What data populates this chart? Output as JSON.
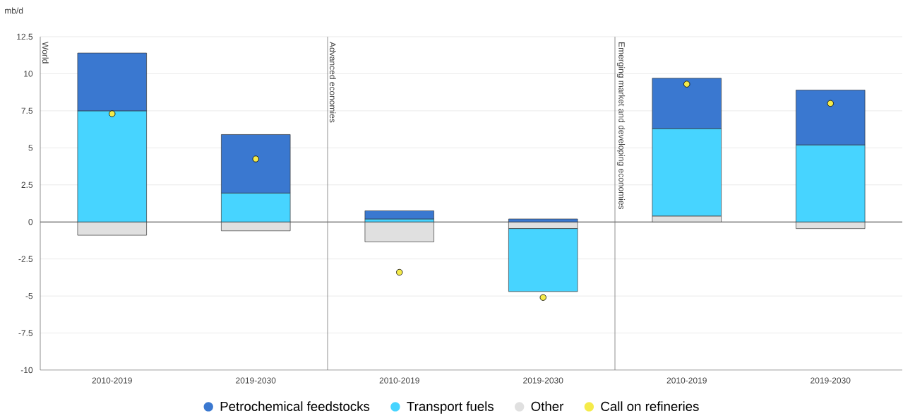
{
  "chart_data": {
    "type": "bar",
    "ylabel": "mb/d",
    "categories": [
      "2010-2019",
      "2019-2030",
      "2010-2019",
      "2019-2030",
      "2010-2019",
      "2019-2030"
    ],
    "stacked": true,
    "series": [
      {
        "name": "Other",
        "color": "#e0e0e0",
        "values": [
          -0.9,
          -0.6,
          -1.35,
          -0.45,
          0.4,
          -0.45
        ]
      },
      {
        "name": "Transport fuels",
        "color": "#47d4ff",
        "values": [
          7.5,
          1.95,
          0.2,
          -4.25,
          5.9,
          5.2
        ]
      },
      {
        "name": "Petrochemical feedstocks",
        "color": "#3a78d0",
        "values": [
          3.9,
          3.95,
          0.55,
          0.2,
          3.4,
          3.7
        ]
      },
      {
        "name": "Call on refineries",
        "type": "scatter",
        "marker": "circle",
        "color": "#f5eb4a",
        "values": [
          7.3,
          4.25,
          -3.4,
          -5.1,
          9.3,
          8.0
        ]
      }
    ],
    "ylim": [
      -10,
      12.5
    ],
    "yticks": [
      -10,
      -7.5,
      -5,
      -2.5,
      0,
      2.5,
      5,
      7.5,
      10,
      12.5
    ],
    "grid": "y",
    "legend": "bottom",
    "annotations": [
      "World",
      "Advanced economies",
      "Emerging market and developing economies"
    ]
  }
}
